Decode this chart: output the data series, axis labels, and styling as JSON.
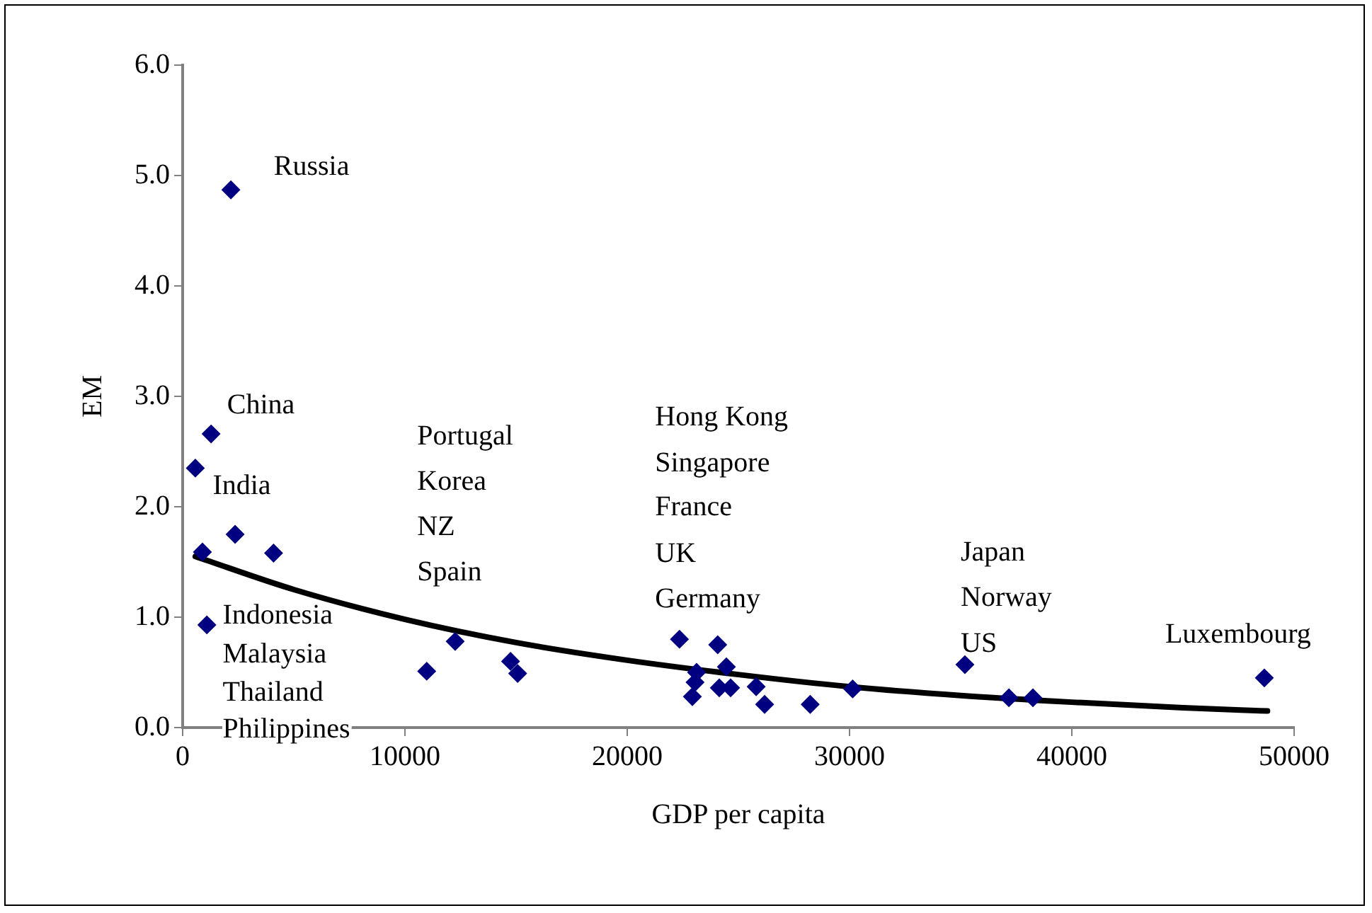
{
  "chart_data": {
    "type": "scatter",
    "xlabel": "GDP per capita",
    "ylabel": "EM",
    "xlim": [
      0,
      50000
    ],
    "xticks": [
      0,
      10000,
      20000,
      30000,
      40000,
      50000
    ],
    "ylim": [
      0,
      6
    ],
    "yticks": [
      {
        "value": 0,
        "label": "0.0"
      },
      {
        "value": 1,
        "label": "1.0"
      },
      {
        "value": 2,
        "label": "2.0"
      },
      {
        "value": 3,
        "label": "3.0"
      },
      {
        "value": 4,
        "label": "4.0"
      },
      {
        "value": 5,
        "label": "5.0"
      },
      {
        "value": 6,
        "label": "6.0"
      }
    ],
    "legend": false,
    "marker": "diamond",
    "series": [
      {
        "color": "#000080",
        "x": [
          2170,
          1280,
          570,
          2360,
          890,
          4090,
          1090,
          10980,
          12260,
          14750,
          15070,
          22350,
          24070,
          23120,
          23050,
          22930,
          24140,
          24460,
          24650,
          25800,
          26180,
          28230,
          30140,
          35190,
          37170,
          38250,
          48660
        ],
        "values": [
          4.87,
          2.66,
          2.35,
          1.75,
          1.59,
          1.58,
          0.93,
          0.51,
          0.78,
          0.6,
          0.49,
          0.8,
          0.75,
          0.5,
          0.41,
          0.28,
          0.36,
          0.55,
          0.36,
          0.37,
          0.21,
          0.21,
          0.35,
          0.57,
          0.27,
          0.27,
          0.45
        ]
      },
      {
        "type": "line",
        "color": "#000000",
        "marker": "none",
        "x": [
          570,
          5000,
          10000,
          15000,
          20000,
          25000,
          30000,
          35000,
          40000,
          45000,
          48800
        ],
        "values": [
          1.55,
          1.25,
          0.98,
          0.77,
          0.61,
          0.48,
          0.37,
          0.29,
          0.23,
          0.18,
          0.15
        ]
      }
    ],
    "annotations": [
      "Russia",
      "China",
      "India",
      "Indonesia",
      "Malaysia",
      "Thailand",
      "Philippines",
      "Portugal",
      "Korea",
      "NZ",
      "Spain",
      "Hong Kong",
      "Singapore",
      "France",
      "UK",
      "Germany",
      "Japan",
      "Norway",
      "US",
      "Luxembourg"
    ]
  }
}
